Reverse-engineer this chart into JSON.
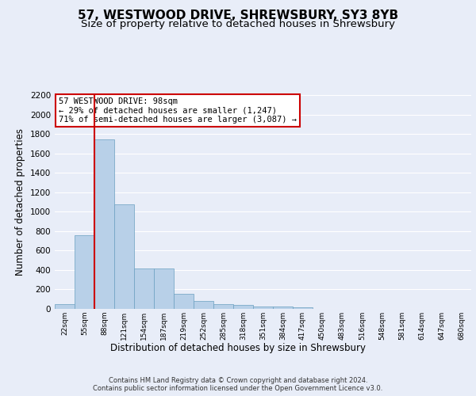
{
  "title_line1": "57, WESTWOOD DRIVE, SHREWSBURY, SY3 8YB",
  "title_line2": "Size of property relative to detached houses in Shrewsbury",
  "xlabel": "Distribution of detached houses by size in Shrewsbury",
  "ylabel": "Number of detached properties",
  "footnote": "Contains HM Land Registry data © Crown copyright and database right 2024.\nContains public sector information licensed under the Open Government Licence v3.0.",
  "annotation_title": "57 WESTWOOD DRIVE: 98sqm",
  "annotation_line2": "← 29% of detached houses are smaller (1,247)",
  "annotation_line3": "71% of semi-detached houses are larger (3,087) →",
  "bin_labels": [
    "22sqm",
    "55sqm",
    "88sqm",
    "121sqm",
    "154sqm",
    "187sqm",
    "219sqm",
    "252sqm",
    "285sqm",
    "318sqm",
    "351sqm",
    "384sqm",
    "417sqm",
    "450sqm",
    "483sqm",
    "516sqm",
    "548sqm",
    "581sqm",
    "614sqm",
    "647sqm",
    "680sqm"
  ],
  "bar_values": [
    50,
    760,
    1740,
    1075,
    415,
    415,
    155,
    80,
    45,
    40,
    27,
    27,
    20,
    0,
    0,
    0,
    0,
    0,
    0,
    0,
    0
  ],
  "bar_color": "#b8d0e8",
  "bar_edgecolor": "#6a9fc0",
  "vline_x_bar": 2,
  "vline_color": "#cc0000",
  "ylim": [
    0,
    2200
  ],
  "yticks": [
    0,
    200,
    400,
    600,
    800,
    1000,
    1200,
    1400,
    1600,
    1800,
    2000,
    2200
  ],
  "background_color": "#e8edf8",
  "plot_bg_color": "#e8edf8",
  "grid_color": "#ffffff",
  "title_fontsize": 11,
  "subtitle_fontsize": 9.5,
  "ylabel_fontsize": 8.5,
  "xlabel_fontsize": 8.5,
  "annotation_fontsize": 7.5,
  "annotation_box_color": "#ffffff",
  "annotation_box_edgecolor": "#cc0000",
  "tick_fontsize": 7.5,
  "xtick_fontsize": 6.5,
  "footnote_fontsize": 6.0
}
